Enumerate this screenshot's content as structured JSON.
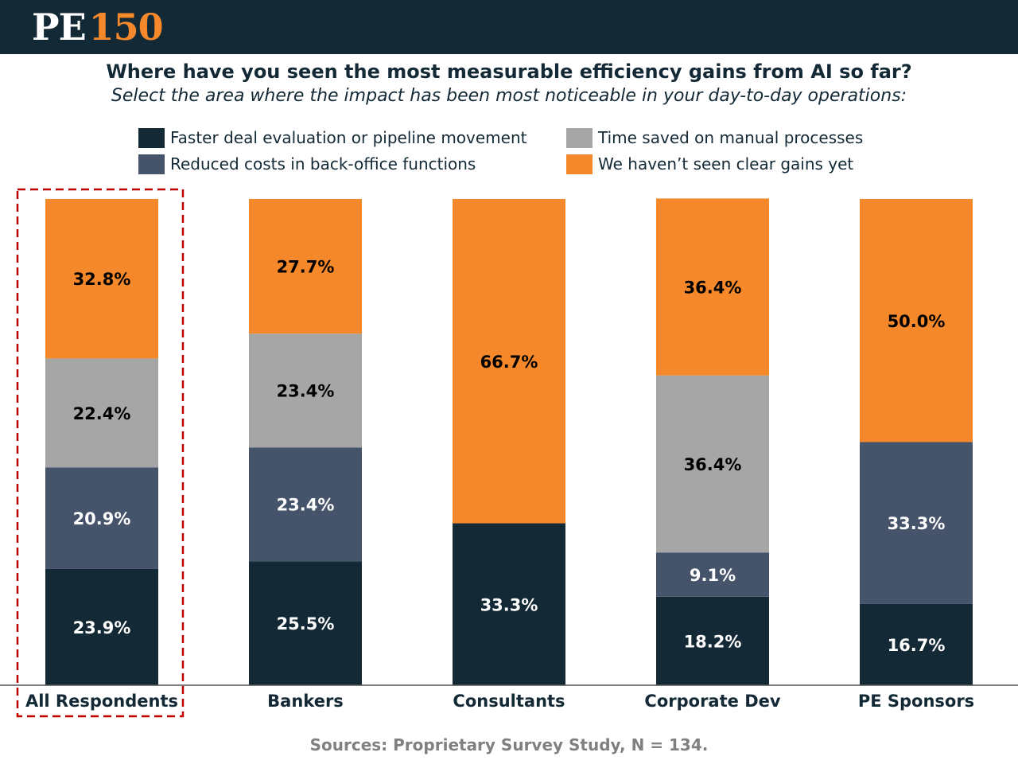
{
  "header": {
    "logo_left": "PE",
    "logo_right": "150"
  },
  "title": "Where have you seen the most measurable efficiency gains from AI so far?",
  "subtitle": "Select the area where the impact has been most noticeable in your day-to-day operations:",
  "source": "Sources: Proprietary Survey Study, N = 134.",
  "colors": {
    "faster_deal": "#142936",
    "reduced_costs": "#46546b",
    "time_saved": "#a6a6a6",
    "no_gains": "#f5882a",
    "highlight_border": "#c00000"
  },
  "legend": [
    {
      "label": "Faster deal evaluation or pipeline movement",
      "color": "#142936"
    },
    {
      "label": "Time saved on manual processes",
      "color": "#a6a6a6"
    },
    {
      "label": "Reduced costs in back-office functions",
      "color": "#46546b"
    },
    {
      "label": "We haven’t seen clear gains yet",
      "color": "#f5882a"
    }
  ],
  "chart_data": {
    "type": "bar",
    "stacked": true,
    "highlighted_category": "All Respondents",
    "categories": [
      "All Respondents",
      "Bankers",
      "Consultants",
      "Corporate Dev",
      "PE Sponsors"
    ],
    "series": [
      {
        "name": "Faster deal evaluation or pipeline movement",
        "color": "#142936",
        "label_color": "#ffffff",
        "values": [
          23.9,
          25.5,
          33.3,
          18.2,
          16.7
        ],
        "labels": [
          "23.9%",
          "25.5%",
          "33.3%",
          "18.2%",
          "16.7%"
        ]
      },
      {
        "name": "Reduced costs in back-office functions",
        "color": "#46546b",
        "label_color": "#ffffff",
        "values": [
          20.9,
          23.4,
          0,
          9.1,
          33.3
        ],
        "labels": [
          "20.9%",
          "23.4%",
          "",
          "9.1%",
          "33.3%"
        ]
      },
      {
        "name": "Time saved on manual processes",
        "color": "#a6a6a6",
        "label_color": "#000000",
        "values": [
          22.4,
          23.4,
          0,
          36.4,
          0
        ],
        "labels": [
          "22.4%",
          "23.4%",
          "",
          "36.4%",
          ""
        ]
      },
      {
        "name": "We haven’t seen clear gains yet",
        "color": "#f5882a",
        "label_color": "#000000",
        "values": [
          32.8,
          27.7,
          66.7,
          36.4,
          50.0
        ],
        "labels": [
          "32.8%",
          "27.7%",
          "66.7%",
          "36.4%",
          "50.0%"
        ]
      }
    ],
    "ylim": [
      0,
      100
    ]
  }
}
